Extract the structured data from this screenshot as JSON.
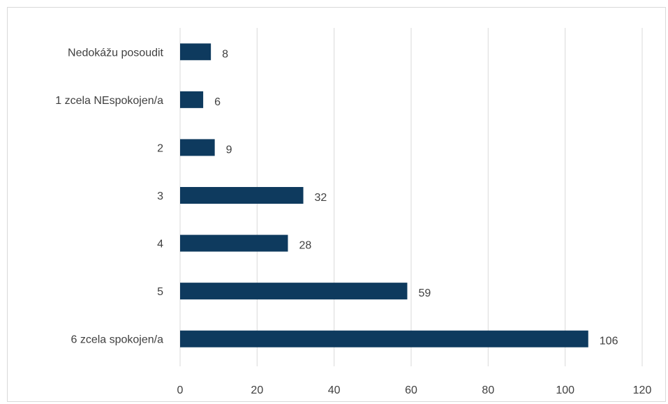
{
  "chart_data": {
    "type": "bar",
    "orientation": "horizontal",
    "title": "",
    "xlabel": "",
    "ylabel": "",
    "categories": [
      "Nedokážu posoudit",
      "1 zcela NEspokojen/a",
      "2",
      "3",
      "4",
      "5",
      "6 zcela spokojen/a"
    ],
    "values": [
      8,
      6,
      9,
      32,
      28,
      59,
      106
    ],
    "xlim": [
      0,
      120
    ],
    "xticks": [
      0,
      20,
      40,
      60,
      80,
      100,
      120
    ],
    "grid": "vertical",
    "legend": "none",
    "bar_color": "#0e3a5e",
    "grid_color": "#d9d9d9",
    "text_color": "#404040"
  }
}
